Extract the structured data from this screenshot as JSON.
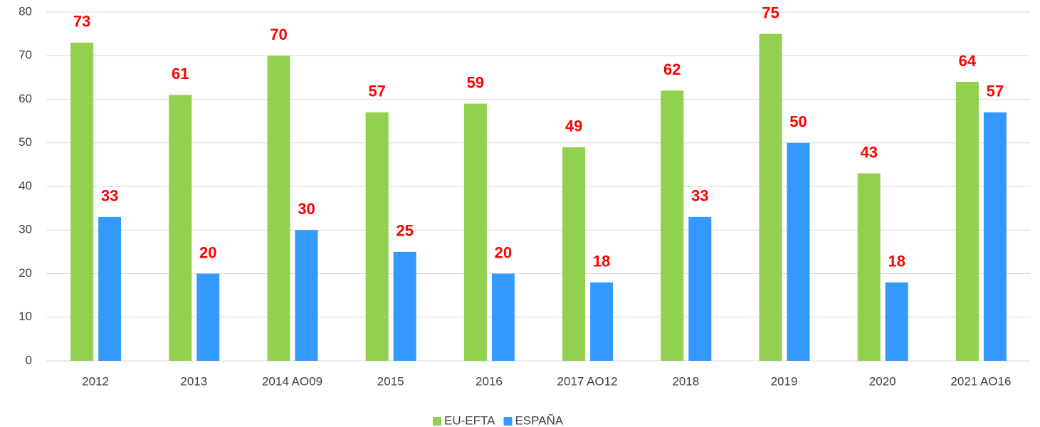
{
  "chart_data": {
    "type": "bar",
    "categories": [
      "2012",
      "2013",
      "2014 AO09",
      "2015",
      "2016",
      "2017 AO12",
      "2018",
      "2019",
      "2020",
      "2021 AO16"
    ],
    "series": [
      {
        "name": "EU-EFTA",
        "color": "#92d050",
        "values": [
          73,
          61,
          70,
          57,
          59,
          49,
          62,
          75,
          43,
          64
        ]
      },
      {
        "name": "ESPAÑA",
        "color": "#3399ff",
        "values": [
          33,
          20,
          30,
          25,
          20,
          18,
          33,
          50,
          18,
          57
        ]
      }
    ],
    "ylim": [
      0,
      80
    ],
    "yticks": [
      0,
      10,
      20,
      30,
      40,
      50,
      60,
      70,
      80
    ],
    "grid": true,
    "legend": "bottom",
    "value_label_color": "#ff0000"
  }
}
